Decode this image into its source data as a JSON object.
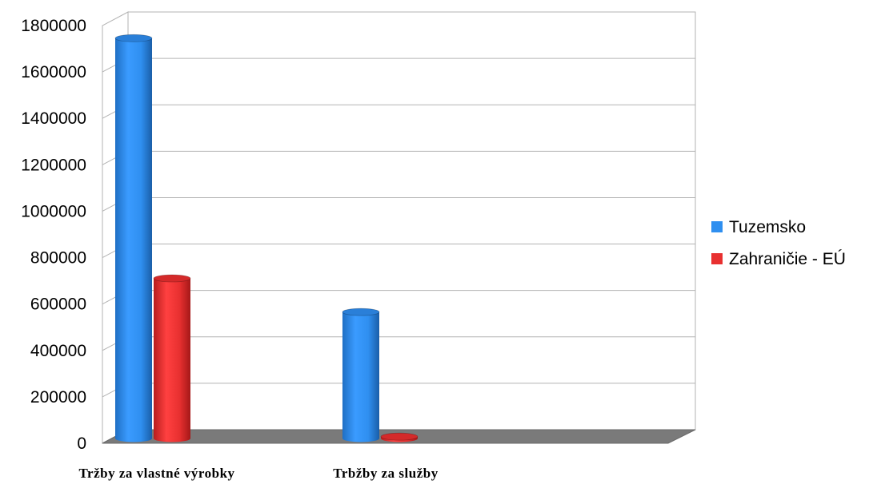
{
  "chart_data": {
    "type": "bar",
    "categories": [
      "Tržby za vlastné výrobky",
      "Trbžby za služby"
    ],
    "series": [
      {
        "name": "Tuzemsko",
        "values": [
          1725000,
          545000
        ],
        "color": "#2f8ff0"
      },
      {
        "name": "Zahraničie - EÚ",
        "values": [
          690000,
          8000
        ],
        "color": "#e83030"
      }
    ],
    "ylim": [
      0,
      1800000
    ],
    "yticks": [
      "0",
      "200000",
      "400000",
      "600000",
      "800000",
      "1000000",
      "1200000",
      "1400000",
      "1600000",
      "1800000"
    ],
    "grid": true,
    "legend_position": "right",
    "style": "3d-cylinder"
  }
}
